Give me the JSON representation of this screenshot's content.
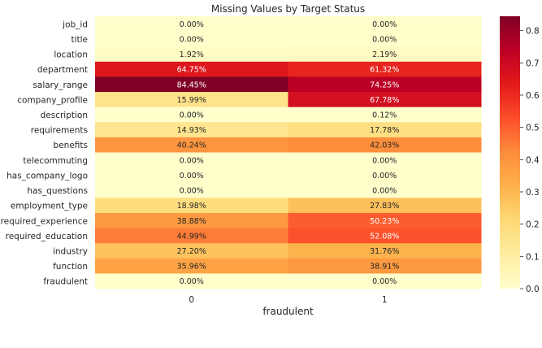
{
  "chart_data": {
    "type": "heatmap",
    "title": "Missing Values by Target Status",
    "xlabel": "fraudulent",
    "ylabel": "",
    "x_categories": [
      "0",
      "1"
    ],
    "y_categories": [
      "job_id",
      "title",
      "location",
      "department",
      "salary_range",
      "company_profile",
      "description",
      "requirements",
      "benefits",
      "telecommuting",
      "has_company_logo",
      "has_questions",
      "employment_type",
      "required_experience",
      "required_education",
      "industry",
      "function",
      "fraudulent"
    ],
    "values": [
      [
        0.0,
        0.0
      ],
      [
        0.0,
        0.0
      ],
      [
        0.0192,
        0.0219
      ],
      [
        0.6475,
        0.6132
      ],
      [
        0.8445,
        0.7425
      ],
      [
        0.1599,
        0.6778
      ],
      [
        0.0,
        0.0012
      ],
      [
        0.1493,
        0.1778
      ],
      [
        0.4024,
        0.4203
      ],
      [
        0.0,
        0.0
      ],
      [
        0.0,
        0.0
      ],
      [
        0.0,
        0.0
      ],
      [
        0.1898,
        0.2783
      ],
      [
        0.3888,
        0.5023
      ],
      [
        0.4499,
        0.5208
      ],
      [
        0.272,
        0.3176
      ],
      [
        0.3596,
        0.3891
      ],
      [
        0.0,
        0.0
      ]
    ],
    "annotations": [
      [
        "0.00%",
        "0.00%"
      ],
      [
        "0.00%",
        "0.00%"
      ],
      [
        "1.92%",
        "2.19%"
      ],
      [
        "64.75%",
        "61.32%"
      ],
      [
        "84.45%",
        "74.25%"
      ],
      [
        "15.99%",
        "67.78%"
      ],
      [
        "0.00%",
        "0.12%"
      ],
      [
        "14.93%",
        "17.78%"
      ],
      [
        "40.24%",
        "42.03%"
      ],
      [
        "0.00%",
        "0.00%"
      ],
      [
        "0.00%",
        "0.00%"
      ],
      [
        "0.00%",
        "0.00%"
      ],
      [
        "18.98%",
        "27.83%"
      ],
      [
        "38.88%",
        "50.23%"
      ],
      [
        "44.99%",
        "52.08%"
      ],
      [
        "27.20%",
        "31.76%"
      ],
      [
        "35.96%",
        "38.91%"
      ],
      [
        "0.00%",
        "0.00%"
      ]
    ],
    "colormap": "YlOrRd",
    "colorbar": {
      "range": [
        0,
        0.8445
      ],
      "ticks": [
        0.0,
        0.1,
        0.2,
        0.3,
        0.4,
        0.5,
        0.6,
        0.7,
        0.8
      ],
      "tick_labels": [
        "0.0",
        "0.1",
        "0.2",
        "0.3",
        "0.4",
        "0.5",
        "0.6",
        "0.7",
        "0.8"
      ]
    },
    "grid": false
  }
}
